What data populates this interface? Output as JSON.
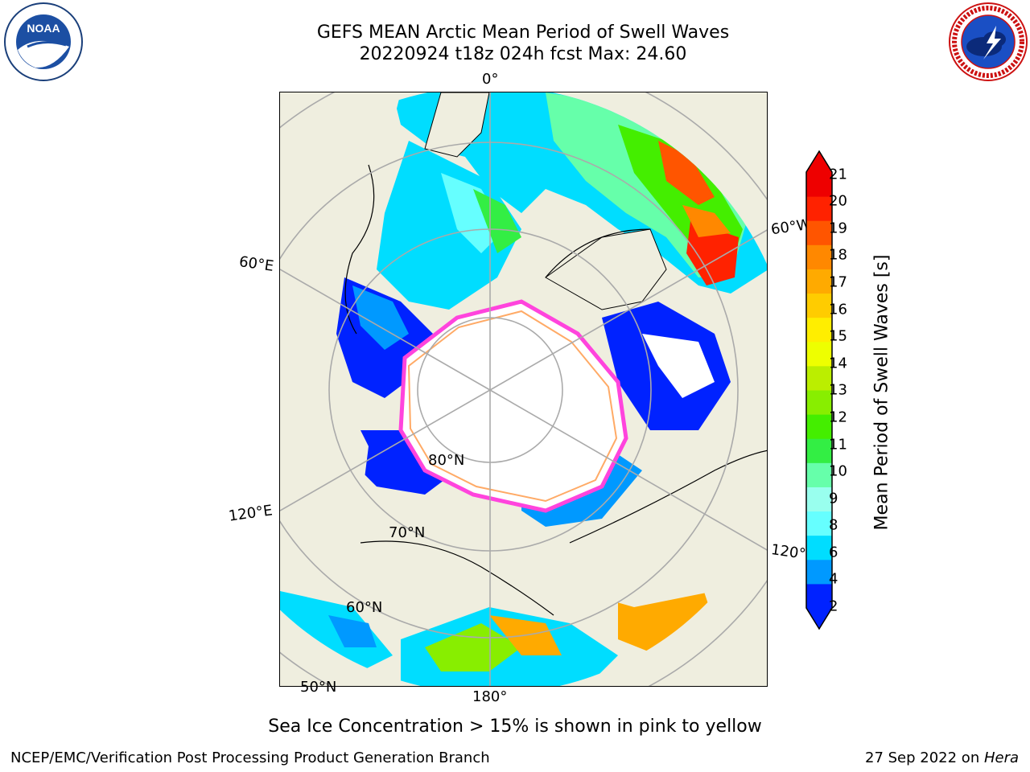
{
  "header": {
    "title_line1": "GEFS MEAN Arctic Mean Period of Swell Waves",
    "title_line2": "20220924 t18z 024h fcst   Max: 24.60"
  },
  "logos": {
    "left": "NOAA",
    "right": "NATIONAL WEATHER SERVICE"
  },
  "map": {
    "projection": "north-polar-stereographic",
    "longitude_labels": [
      "0°",
      "60°E",
      "120°E",
      "180°",
      "120°",
      "60°W"
    ],
    "latitude_labels": [
      "80°N",
      "70°N",
      "60°N",
      "50°N"
    ]
  },
  "colorbar": {
    "label": "Mean Period of Swell Waves [s]",
    "ticks": [
      "21",
      "20",
      "19",
      "18",
      "17",
      "16",
      "15",
      "14",
      "13",
      "12",
      "11",
      "10",
      "9",
      "8",
      "6",
      "4",
      "2"
    ],
    "colors": [
      "#0022ff",
      "#0099ff",
      "#00ddff",
      "#66ffff",
      "#99ffee",
      "#66ffaa",
      "#33ee44",
      "#44ee00",
      "#88ee00",
      "#bbee00",
      "#eeff00",
      "#ffee00",
      "#ffcc00",
      "#ffaa00",
      "#ff8800",
      "#ff5500",
      "#ff2200",
      "#ee0000"
    ],
    "extend": "both"
  },
  "note": "Sea Ice Concentration > 15% is shown in pink to yellow",
  "footer": {
    "left": "NCEP/EMC/Verification Post Processing Product Generation Branch",
    "right_date": "27 Sep 2022 on ",
    "right_machine": "Hera"
  }
}
